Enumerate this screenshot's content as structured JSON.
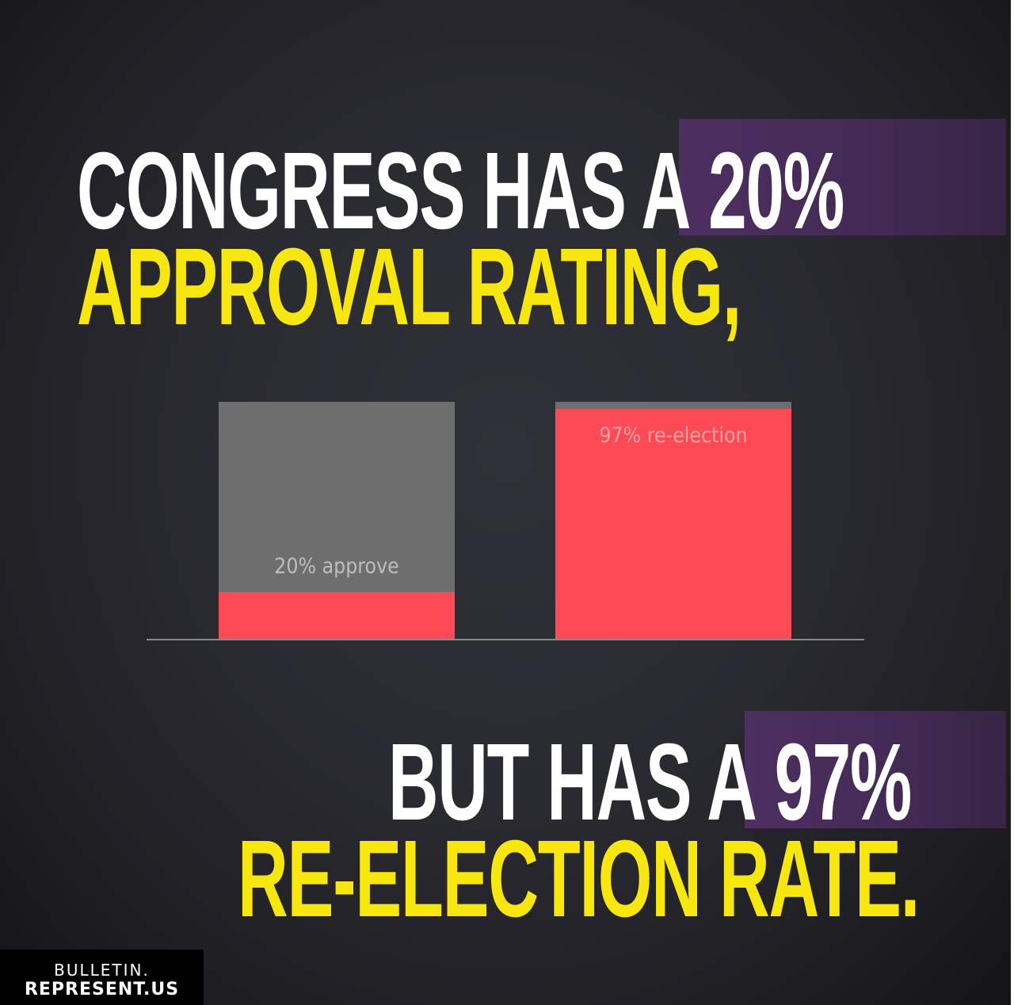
{
  "headline": {
    "line1_prefix": "CONGRESS HAS A",
    "line1_highlight": "20%",
    "line2": "APPROVAL RATING,",
    "line3_prefix": "BUT HAS A",
    "line3_highlight": "97%",
    "line4": "RE-ELECTION RATE."
  },
  "logo": {
    "line1": "BULLETIN.",
    "line2": "REPRESENT.US"
  },
  "colors": {
    "background": "#2a2a31",
    "highlight_box": "#4a2e5c",
    "yellow": "#f7e70f",
    "white": "#ffffff",
    "bar_fill": "#fe4a55",
    "bar_remainder": "#6e6e6e"
  },
  "chart_data": {
    "type": "bar",
    "stacked_to_100": true,
    "categories": [
      "approval",
      "re-election"
    ],
    "values": [
      20,
      97
    ],
    "ylim": [
      0,
      100
    ],
    "grid": false,
    "data_labels": [
      "20% approve",
      "97% re-election"
    ]
  }
}
